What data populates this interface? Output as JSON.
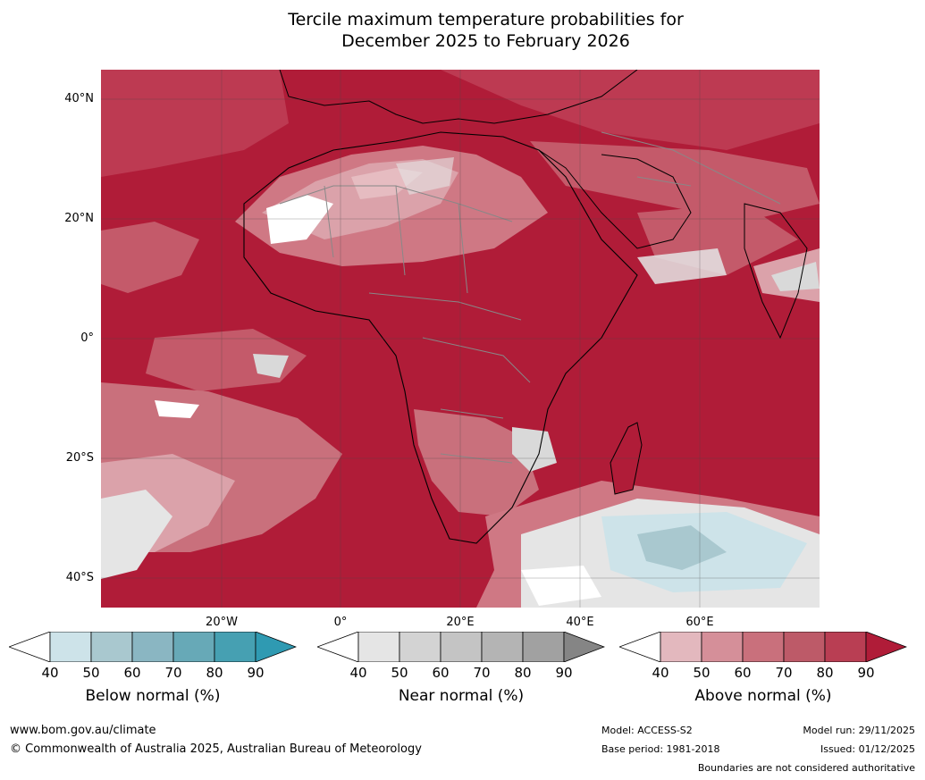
{
  "title_line1": "Tercile maximum temperature probabilities for",
  "title_line2": "December 2025 to February 2026",
  "lat_labels": [
    "40°N",
    "20°N",
    "0°",
    "20°S",
    "40°S"
  ],
  "lon_labels": [
    "20°W",
    "0°",
    "20°E",
    "40°E",
    "60°E"
  ],
  "colorbars": {
    "below": {
      "title": "Below normal (%)",
      "ticks": [
        "40",
        "50",
        "60",
        "70",
        "80",
        "90"
      ],
      "colors": [
        "#ffffff",
        "#cde3e9",
        "#a9c8cf",
        "#8ab6c2",
        "#67a9b7",
        "#46a0b2",
        "#2f9ab2"
      ]
    },
    "near": {
      "title": "Near normal (%)",
      "ticks": [
        "40",
        "50",
        "60",
        "70",
        "80",
        "90"
      ],
      "colors": [
        "#ffffff",
        "#e5e5e5",
        "#d3d3d3",
        "#c4c4c4",
        "#b4b4b4",
        "#a1a1a1",
        "#858585"
      ]
    },
    "above": {
      "title": "Above normal (%)",
      "ticks": [
        "40",
        "50",
        "60",
        "70",
        "80",
        "90"
      ],
      "colors": [
        "#ffffff",
        "#e3b8be",
        "#d58f99",
        "#c9707c",
        "#bd5a68",
        "#b93e53",
        "#b01c38"
      ]
    }
  },
  "footer": {
    "url": "www.bom.gov.au/climate",
    "copyright": "© Commonwealth of Australia 2025, Australian Bureau of Meteorology",
    "model": "Model: ACCESS-S2",
    "base_period": "Base period: 1981-2018",
    "model_run": "Model run: 29/11/2025",
    "issued": "Issued: 01/12/2025",
    "disclaimer": "Boundaries are not considered authoritative"
  }
}
